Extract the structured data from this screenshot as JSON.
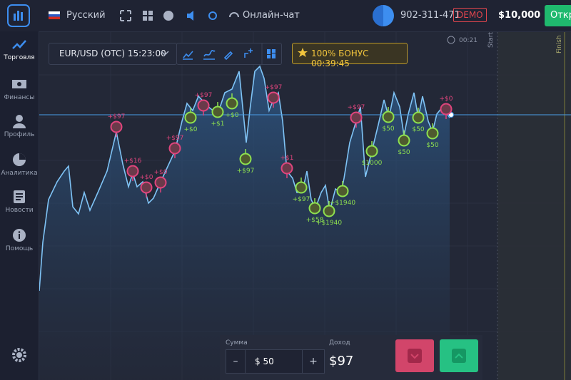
{
  "header": {
    "language": "Русский",
    "chat": "Онлайн-чат",
    "account": "902-311-471",
    "mode": "DEMO",
    "balance": "$10,000",
    "open_button": "Откр"
  },
  "sidebar": {
    "items": [
      "Торговля",
      "Финансы",
      "Профиль",
      "Аналитика",
      "Новости",
      "Помощь"
    ]
  },
  "toolbar": {
    "asset": "EUR/USD (OTC) 15:23:00",
    "bonus": "100% БОНУС 00:39:45"
  },
  "chart": {
    "timer": "00:21",
    "start": "Start",
    "finish": "Finish",
    "markers": [
      {
        "label": "+$97",
        "kind": "loss"
      },
      {
        "label": "+$16",
        "kind": "loss"
      },
      {
        "label": "+$0",
        "kind": "loss"
      },
      {
        "label": "+$0",
        "kind": "loss"
      },
      {
        "label": "+$97",
        "kind": "loss"
      },
      {
        "label": "+$97",
        "kind": "loss"
      },
      {
        "label": "+$97",
        "kind": "loss"
      },
      {
        "label": "+$1",
        "kind": "loss"
      },
      {
        "label": "+$97",
        "kind": "loss"
      },
      {
        "label": "+$0",
        "kind": "loss"
      },
      {
        "label": "+$0",
        "kind": "win"
      },
      {
        "label": "+$1",
        "kind": "win"
      },
      {
        "label": "+$0",
        "kind": "win"
      },
      {
        "label": "+$97",
        "kind": "win"
      },
      {
        "label": "+$97",
        "kind": "win"
      },
      {
        "label": "+$58",
        "kind": "win"
      },
      {
        "label": "+$1940",
        "kind": "win"
      },
      {
        "label": "+$1940",
        "kind": "win"
      },
      {
        "label": "$1000",
        "kind": "win"
      },
      {
        "label": "$50",
        "kind": "win"
      },
      {
        "label": "$50",
        "kind": "win"
      },
      {
        "label": "$50",
        "kind": "win"
      },
      {
        "label": "$50",
        "kind": "win"
      }
    ]
  },
  "trade_panel": {
    "amount_label": "Сумма",
    "minus": "–",
    "amount": "$ 50",
    "plus": "+",
    "income_label": "Доход",
    "income": "$97"
  }
}
